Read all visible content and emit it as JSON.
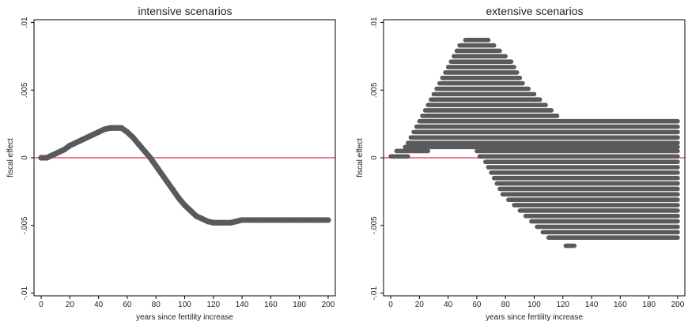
{
  "figure": {
    "colors": {
      "markers": "#5a5a5a",
      "zero_line": "#e0304a",
      "frame": "#000000",
      "background": "#ffffff"
    }
  },
  "chart_data": [
    {
      "type": "scatter",
      "title": "intensive scenarios",
      "xlabel": "years since fertility increase",
      "ylabel": "fiscal effect",
      "xlim": [
        -5,
        205
      ],
      "ylim": [
        -0.0102,
        0.0102
      ],
      "x_ticks": [
        "0",
        "20",
        "40",
        "60",
        "80",
        "100",
        "120",
        "140",
        "160",
        "180",
        "200"
      ],
      "y_ticks": [
        ".01",
        ".005",
        "0",
        "-.005",
        "-.01"
      ],
      "grid": false,
      "reference_line_y": 0,
      "series": [
        {
          "description": "single trajectory of fiscal effect by year",
          "points": [
            [
              0,
              0
            ],
            [
              4,
              0
            ],
            [
              8,
              0.0002
            ],
            [
              12,
              0.0004
            ],
            [
              16,
              0.0006
            ],
            [
              20,
              0.0009
            ],
            [
              24,
              0.0011
            ],
            [
              28,
              0.0013
            ],
            [
              32,
              0.0015
            ],
            [
              36,
              0.0017
            ],
            [
              40,
              0.0019
            ],
            [
              44,
              0.0021
            ],
            [
              48,
              0.0022
            ],
            [
              52,
              0.0022
            ],
            [
              56,
              0.0022
            ],
            [
              60,
              0.0019
            ],
            [
              64,
              0.0015
            ],
            [
              68,
              0.001
            ],
            [
              72,
              0.0005
            ],
            [
              76,
              0.0
            ],
            [
              80,
              -0.0006
            ],
            [
              84,
              -0.0012
            ],
            [
              88,
              -0.0018
            ],
            [
              92,
              -0.0024
            ],
            [
              96,
              -0.003
            ],
            [
              100,
              -0.0035
            ],
            [
              104,
              -0.0039
            ],
            [
              108,
              -0.0043
            ],
            [
              112,
              -0.0045
            ],
            [
              116,
              -0.0047
            ],
            [
              120,
              -0.0048
            ],
            [
              124,
              -0.0048
            ],
            [
              128,
              -0.0048
            ],
            [
              132,
              -0.0048
            ],
            [
              136,
              -0.0047
            ],
            [
              140,
              -0.0046
            ],
            [
              150,
              -0.0046
            ],
            [
              160,
              -0.0046
            ],
            [
              170,
              -0.0046
            ],
            [
              180,
              -0.0046
            ],
            [
              190,
              -0.0046
            ],
            [
              200,
              -0.0046
            ]
          ]
        }
      ]
    },
    {
      "type": "scatter",
      "title": "extensive scenarios",
      "xlabel": "years since fertility increase",
      "ylabel": "fiscal effect",
      "xlim": [
        -5,
        205
      ],
      "ylim": [
        -0.0102,
        0.0102
      ],
      "x_ticks": [
        "0",
        "20",
        "40",
        "60",
        "80",
        "100",
        "120",
        "140",
        "160",
        "180",
        "200"
      ],
      "y_ticks": [
        ".01",
        ".005",
        "0",
        "-.005",
        "-.01"
      ],
      "grid": false,
      "reference_line_y": 0,
      "series": [
        {
          "description": "horizontal bands of scenario outcomes at discrete fiscal-effect levels",
          "segments": [
            {
              "y": 0.0087,
              "x": [
                52,
                68
              ]
            },
            {
              "y": 0.0083,
              "x": [
                48,
                72
              ]
            },
            {
              "y": 0.0079,
              "x": [
                46,
                76
              ]
            },
            {
              "y": 0.0075,
              "x": [
                44,
                80
              ]
            },
            {
              "y": 0.0071,
              "x": [
                42,
                84
              ]
            },
            {
              "y": 0.0067,
              "x": [
                40,
                86
              ]
            },
            {
              "y": 0.0063,
              "x": [
                38,
                88
              ]
            },
            {
              "y": 0.0059,
              "x": [
                36,
                90
              ]
            },
            {
              "y": 0.0055,
              "x": [
                34,
                92
              ]
            },
            {
              "y": 0.0051,
              "x": [
                32,
                96
              ]
            },
            {
              "y": 0.0047,
              "x": [
                30,
                100
              ]
            },
            {
              "y": 0.0043,
              "x": [
                28,
                104
              ]
            },
            {
              "y": 0.0039,
              "x": [
                26,
                108
              ]
            },
            {
              "y": 0.0035,
              "x": [
                24,
                112
              ]
            },
            {
              "y": 0.0031,
              "x": [
                22,
                116
              ]
            },
            {
              "y": 0.0027,
              "x": [
                20,
                200
              ]
            },
            {
              "y": 0.0023,
              "x": [
                18,
                200
              ]
            },
            {
              "y": 0.0019,
              "x": [
                16,
                200
              ]
            },
            {
              "y": 0.0015,
              "x": [
                14,
                200
              ]
            },
            {
              "y": 0.0011,
              "x": [
                12,
                200
              ]
            },
            {
              "y": 0.0008,
              "x": [
                10,
                200
              ]
            },
            {
              "y": 0.0005,
              "x": [
                4,
                26
              ]
            },
            {
              "y": 0.0005,
              "x": [
                60,
                200
              ]
            },
            {
              "y": 0.0001,
              "x": [
                0,
                12
              ]
            },
            {
              "y": 0.0001,
              "x": [
                62,
                200
              ]
            },
            {
              "y": -0.0003,
              "x": [
                66,
                200
              ]
            },
            {
              "y": -0.0007,
              "x": [
                68,
                200
              ]
            },
            {
              "y": -0.0011,
              "x": [
                70,
                200
              ]
            },
            {
              "y": -0.0015,
              "x": [
                72,
                200
              ]
            },
            {
              "y": -0.0019,
              "x": [
                74,
                200
              ]
            },
            {
              "y": -0.0023,
              "x": [
                76,
                200
              ]
            },
            {
              "y": -0.0027,
              "x": [
                78,
                200
              ]
            },
            {
              "y": -0.0031,
              "x": [
                82,
                200
              ]
            },
            {
              "y": -0.0035,
              "x": [
                86,
                200
              ]
            },
            {
              "y": -0.0039,
              "x": [
                90,
                200
              ]
            },
            {
              "y": -0.0043,
              "x": [
                94,
                200
              ]
            },
            {
              "y": -0.0047,
              "x": [
                98,
                200
              ]
            },
            {
              "y": -0.0051,
              "x": [
                102,
                200
              ]
            },
            {
              "y": -0.0055,
              "x": [
                106,
                200
              ]
            },
            {
              "y": -0.0059,
              "x": [
                110,
                200
              ]
            },
            {
              "y": -0.0065,
              "x": [
                122,
                128
              ]
            }
          ]
        }
      ]
    }
  ]
}
